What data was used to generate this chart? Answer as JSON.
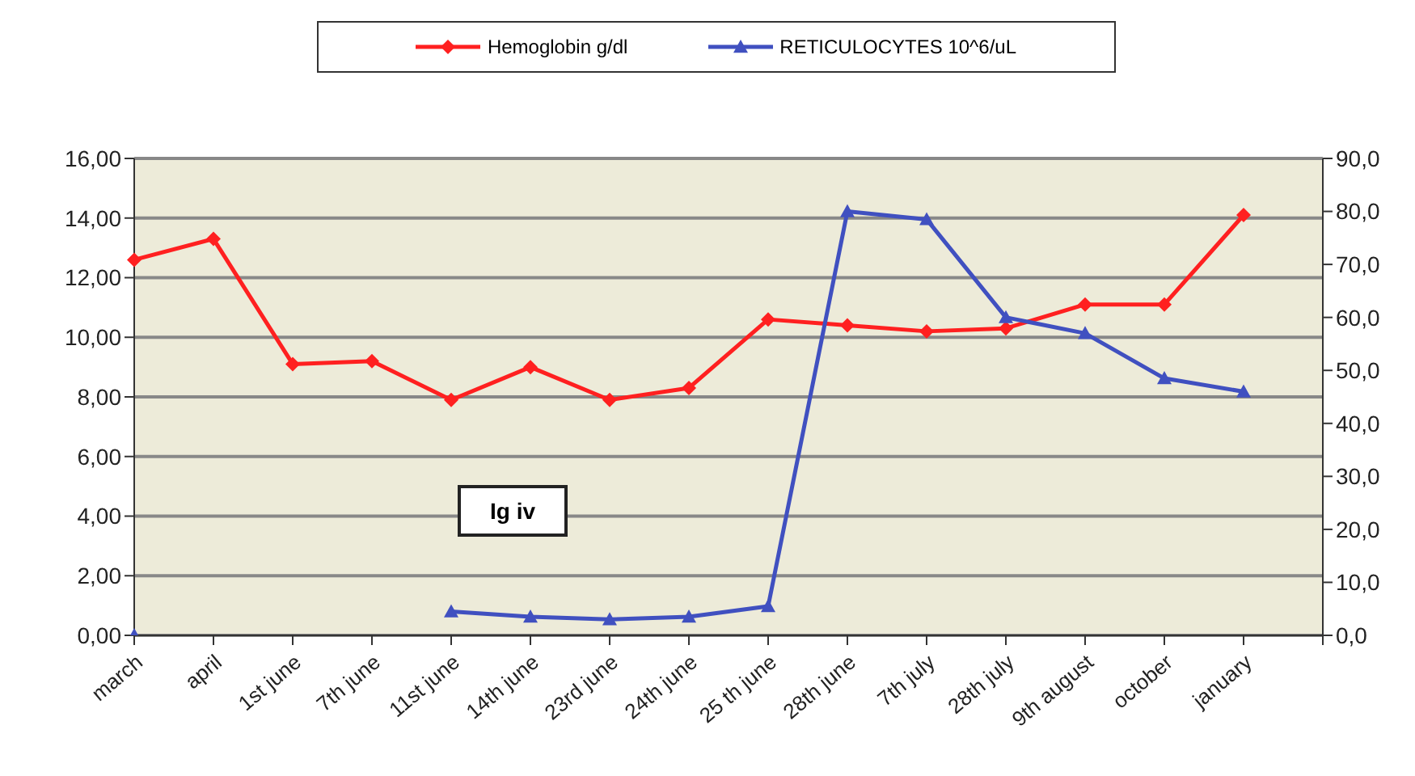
{
  "chart_data": {
    "type": "line",
    "categories": [
      "march",
      "april",
      "1st june",
      "7th june",
      "11st june",
      "14th june",
      "23rd june",
      "24th june",
      "25 th june",
      "28th june",
      "7th july",
      "28th july",
      "9th august",
      "october",
      "january",
      null
    ],
    "series": [
      {
        "name": "Hemoglobin g/dl",
        "color": "#ff2020",
        "marker": "diamond",
        "values": [
          12.6,
          13.3,
          9.1,
          9.2,
          7.9,
          9.0,
          7.9,
          8.3,
          10.6,
          10.4,
          10.2,
          10.3,
          11.1,
          11.1,
          14.1,
          null
        ]
      },
      {
        "name": "RETICULOCYTES  10^6/uL",
        "color": "#4050c0",
        "marker": "triangle",
        "axis": "y2",
        "values": [
          0,
          null,
          null,
          null,
          4.5,
          3.5,
          3,
          3.5,
          5.5,
          80,
          78.5,
          60,
          57,
          48.5,
          46,
          null
        ]
      }
    ],
    "ylim": [
      0,
      16
    ],
    "yticks": [
      {
        "value": 0,
        "label": "0,00"
      },
      {
        "value": 2,
        "label": "2,00"
      },
      {
        "value": 4,
        "label": "4,00"
      },
      {
        "value": 6,
        "label": "6,00"
      },
      {
        "value": 8,
        "label": "8,00"
      },
      {
        "value": 10,
        "label": "10,00"
      },
      {
        "value": 12,
        "label": "12,00"
      },
      {
        "value": 14,
        "label": "14,00"
      },
      {
        "value": 16,
        "label": "16,00"
      }
    ],
    "y2lim": [
      0,
      90
    ],
    "y2ticks": [
      {
        "value": 0,
        "label": "0,0"
      },
      {
        "value": 10,
        "label": "10,0"
      },
      {
        "value": 20,
        "label": "20,0"
      },
      {
        "value": 30,
        "label": "30,0"
      },
      {
        "value": 40,
        "label": "40,0"
      },
      {
        "value": 50,
        "label": "50,0"
      },
      {
        "value": 60,
        "label": "60,0"
      },
      {
        "value": 70,
        "label": "70,0"
      },
      {
        "value": 80,
        "label": "80,0"
      },
      {
        "value": 90,
        "label": "90,0"
      }
    ],
    "grid": "y",
    "legend": "top",
    "line_style": "solid",
    "annotations": [
      "Ig iv"
    ]
  }
}
